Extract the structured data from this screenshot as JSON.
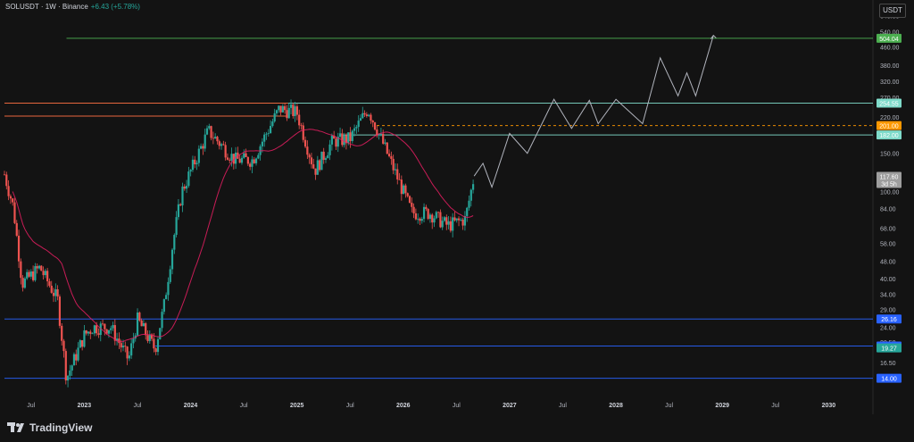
{
  "header": {
    "symbol": "SOLUSDT · 1W · Binance",
    "change": "+6.43 (+5.78%)"
  },
  "currency_button": "USDT",
  "brand": "TradingView",
  "colors": {
    "up": "#26a69a",
    "down": "#ef5350",
    "ma": "#e91e63",
    "green_level": "#4caf50",
    "cyan_level": "#7fdbca",
    "orange_level": "#ff9800",
    "blue_level": "#2962ff",
    "projection": "#b2b5be"
  },
  "chart_data": {
    "type": "candlestick",
    "title": "",
    "ylabel": "",
    "scale": "log",
    "ylim": [
      12,
      700
    ],
    "y_ticks": [
      640,
      540,
      460,
      380,
      320,
      270,
      220,
      150,
      100,
      84,
      68,
      58,
      48,
      40,
      34,
      29,
      24,
      20.5,
      16.5,
      14
    ],
    "y_tick_labels": [
      "640.00",
      "540.00",
      "460.00",
      "380.00",
      "320.00",
      "270.00",
      "220.00",
      "150.00",
      "100.00",
      "84.00",
      "68.00",
      "58.00",
      "48.00",
      "40.00",
      "34.00",
      "29.00",
      "24.00",
      "20.50",
      "16.50",
      "14.00"
    ],
    "x_ticks": [
      "Jul",
      "2023",
      "Jul",
      "2024",
      "Jul",
      "2025",
      "Jul",
      "2026",
      "Jul",
      "2027",
      "Jul",
      "2028",
      "Jul",
      "2029",
      "Jul",
      "2030"
    ],
    "x_range": [
      "2022-04",
      "2030-06"
    ],
    "price_anchors": [
      {
        "date": "2022-04",
        "price": 120
      },
      {
        "date": "2022-05",
        "price": 85
      },
      {
        "date": "2022-06",
        "price": 38
      },
      {
        "date": "2022-08",
        "price": 45
      },
      {
        "date": "2022-10",
        "price": 32
      },
      {
        "date": "2022-11",
        "price": 14
      },
      {
        "date": "2023-01",
        "price": 22
      },
      {
        "date": "2023-02",
        "price": 24
      },
      {
        "date": "2023-04",
        "price": 24
      },
      {
        "date": "2023-06",
        "price": 17
      },
      {
        "date": "2023-07",
        "price": 26
      },
      {
        "date": "2023-09",
        "price": 19
      },
      {
        "date": "2023-10",
        "price": 30
      },
      {
        "date": "2023-11",
        "price": 58
      },
      {
        "date": "2023-12",
        "price": 100
      },
      {
        "date": "2024-03",
        "price": 190
      },
      {
        "date": "2024-06",
        "price": 140
      },
      {
        "date": "2024-08",
        "price": 140
      },
      {
        "date": "2024-11",
        "price": 240
      },
      {
        "date": "2025-01",
        "price": 230
      },
      {
        "date": "2025-03",
        "price": 125
      },
      {
        "date": "2025-05",
        "price": 170
      },
      {
        "date": "2025-07",
        "price": 175
      },
      {
        "date": "2025-09",
        "price": 240
      },
      {
        "date": "2025-10",
        "price": 195
      },
      {
        "date": "2025-12",
        "price": 125
      },
      {
        "date": "2026-02",
        "price": 80
      },
      {
        "date": "2026-04",
        "price": 80
      },
      {
        "date": "2026-06",
        "price": 70
      },
      {
        "date": "2026-08",
        "price": 75
      },
      {
        "date": "2026-09",
        "price": 118
      }
    ],
    "levels": [
      {
        "price": 504.04,
        "label": "504.04",
        "color": "#4caf50",
        "from": "2022-11"
      },
      {
        "price": 254.55,
        "label": "254.55",
        "color": "#7fdbca",
        "from": "2024-12"
      },
      {
        "price": 254.55,
        "label": "",
        "color": "#ff7043",
        "from": "2022-04",
        "to": "2024-12"
      },
      {
        "price": 222,
        "label": "",
        "color": "#ff7043",
        "from": "2022-04",
        "to": "2024-12"
      },
      {
        "price": 201.0,
        "label": "201.00",
        "color": "#ff9800",
        "dashed": true,
        "from": "2025-10"
      },
      {
        "price": 182.0,
        "label": "182.00",
        "color": "#7fdbca",
        "from": "2025-06"
      },
      {
        "price": 26.16,
        "label": "26.16",
        "color": "#2962ff",
        "from": "2022-04"
      },
      {
        "price": 19.68,
        "label": "19.68",
        "color": "#2962ff",
        "from": "2023-09"
      },
      {
        "price": 14.0,
        "label": "14.00",
        "color": "#2962ff",
        "from": "2022-04"
      }
    ],
    "extra_price_labels": [
      {
        "price": 19.27,
        "label": "19.27",
        "color": "#26a69a"
      },
      {
        "price": 117.6,
        "label": "117.60",
        "sub": "3d 5h",
        "color": "#9e9e9e"
      }
    ],
    "projection_path": [
      {
        "date": "2026-09",
        "price": 118
      },
      {
        "date": "2026-10",
        "price": 135
      },
      {
        "date": "2026-11",
        "price": 105
      },
      {
        "date": "2027-01",
        "price": 185
      },
      {
        "date": "2027-03",
        "price": 150
      },
      {
        "date": "2027-06",
        "price": 265
      },
      {
        "date": "2027-08",
        "price": 195
      },
      {
        "date": "2027-10",
        "price": 262
      },
      {
        "date": "2027-11",
        "price": 205
      },
      {
        "date": "2028-01",
        "price": 265
      },
      {
        "date": "2028-04",
        "price": 205
      },
      {
        "date": "2028-06",
        "price": 410
      },
      {
        "date": "2028-08",
        "price": 275
      },
      {
        "date": "2028-09",
        "price": 350
      },
      {
        "date": "2028-10",
        "price": 275
      },
      {
        "date": "2028-12",
        "price": 520
      }
    ]
  }
}
